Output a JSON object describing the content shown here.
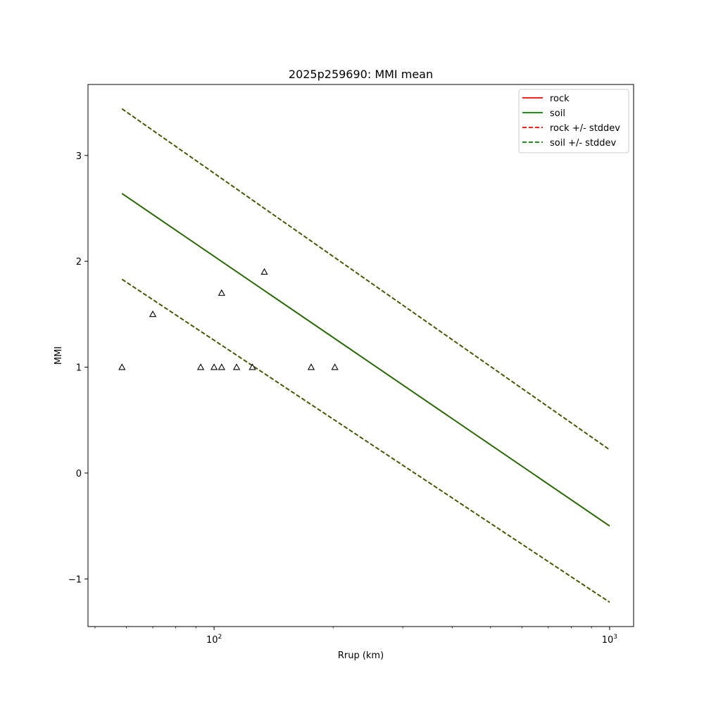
{
  "chart_data": {
    "type": "line",
    "title": "2025p259690: MMI mean",
    "xlabel": "Rrup (km)",
    "ylabel": "MMI",
    "xscale": "log",
    "xlim": [
      48,
      1150
    ],
    "ylim": [
      -1.45,
      3.67
    ],
    "x_ticks": [
      {
        "value": 100,
        "base": "10",
        "exp": "2"
      },
      {
        "value": 1000,
        "base": "10",
        "exp": "3"
      }
    ],
    "y_ticks": [
      -1,
      0,
      1,
      2,
      3
    ],
    "y_tick_labels": [
      "−1",
      "0",
      "1",
      "2",
      "3"
    ],
    "grid": false,
    "legend_position": "top-right",
    "legend": [
      {
        "label": "rock",
        "color": "#ff0000",
        "style": "solid"
      },
      {
        "label": "soil",
        "color": "#008000",
        "style": "solid"
      },
      {
        "label": "rock +/- stddev",
        "color": "#ff0000",
        "style": "dashed"
      },
      {
        "label": "soil +/- stddev",
        "color": "#008000",
        "style": "dashed"
      }
    ],
    "series": [
      {
        "name": "rock",
        "color": "#ff0000",
        "style": "solid",
        "x": [
          58.5,
          1000
        ],
        "y": [
          2.64,
          -0.5
        ]
      },
      {
        "name": "soil",
        "color": "#177000",
        "style": "solid",
        "x": [
          58.5,
          1000
        ],
        "y": [
          2.64,
          -0.5
        ]
      },
      {
        "name": "rock +/- stddev",
        "color": "#ff0000",
        "style": "dashed",
        "x": [
          58.5,
          1000
        ],
        "y": [
          3.44,
          0.22
        ]
      },
      {
        "name": "rock +/- stddev",
        "color": "#ff0000",
        "style": "dashed",
        "x": [
          58.5,
          1000
        ],
        "y": [
          1.83,
          -1.22
        ]
      },
      {
        "name": "soil +/- stddev",
        "color": "#2f6000",
        "style": "dashed",
        "x": [
          58.5,
          1000
        ],
        "y": [
          3.44,
          0.22
        ]
      },
      {
        "name": "soil +/- stddev",
        "color": "#2f6000",
        "style": "dashed",
        "x": [
          58.5,
          1000
        ],
        "y": [
          1.83,
          -1.22
        ]
      }
    ],
    "observations": {
      "marker": "triangle-open",
      "color": "#000000",
      "points": [
        {
          "x": 58.5,
          "y": 1.0
        },
        {
          "x": 70,
          "y": 1.5
        },
        {
          "x": 92.5,
          "y": 1.0
        },
        {
          "x": 100,
          "y": 1.0
        },
        {
          "x": 104.5,
          "y": 1.0
        },
        {
          "x": 104.5,
          "y": 1.7
        },
        {
          "x": 114,
          "y": 1.0
        },
        {
          "x": 125,
          "y": 1.0
        },
        {
          "x": 134,
          "y": 1.9
        },
        {
          "x": 176,
          "y": 1.0
        },
        {
          "x": 202,
          "y": 1.0
        }
      ]
    }
  }
}
